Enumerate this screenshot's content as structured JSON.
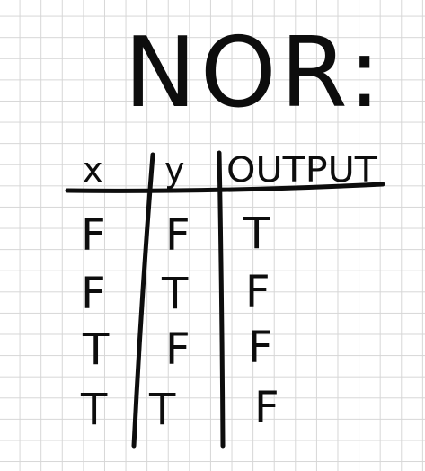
{
  "title": "NOR:",
  "table": {
    "headers": [
      "x",
      "y",
      "OUTPUT"
    ],
    "rows": [
      [
        "F",
        "F",
        "T"
      ],
      [
        "F",
        "T",
        "F"
      ],
      [
        "T",
        "F",
        "F"
      ],
      [
        "T",
        "T",
        "F"
      ]
    ]
  }
}
